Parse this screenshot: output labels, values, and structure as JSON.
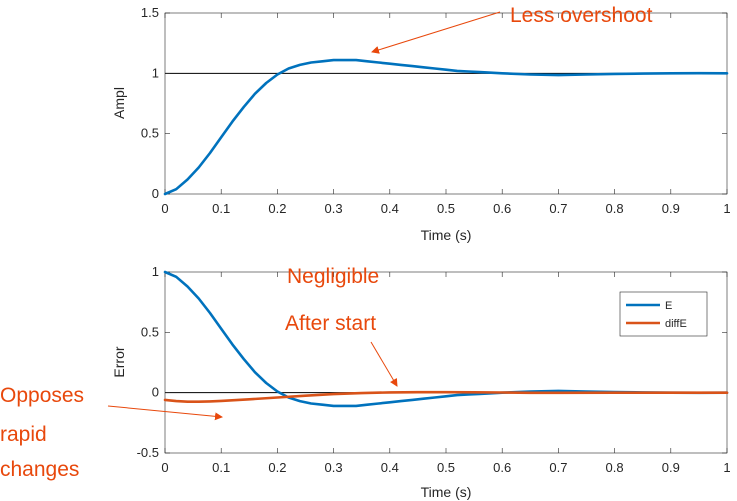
{
  "chart_data": [
    {
      "type": "line",
      "xlabel": "Time (s)",
      "ylabel": "Ampl",
      "xlim": [
        0,
        1
      ],
      "ylim": [
        0,
        1.5
      ],
      "xticks": [
        "0",
        "0.1",
        "0.2",
        "0.3",
        "0.4",
        "0.5",
        "0.6",
        "0.7",
        "0.8",
        "0.9",
        "1"
      ],
      "yticks": [
        "0",
        "0.5",
        "1",
        "1.5"
      ],
      "grid": false,
      "reference_line": 1,
      "series": [
        {
          "color": "#0072bd",
          "x": [
            0,
            0.02,
            0.04,
            0.06,
            0.08,
            0.1,
            0.12,
            0.14,
            0.16,
            0.18,
            0.2,
            0.22,
            0.24,
            0.26,
            0.28,
            0.3,
            0.32,
            0.34,
            0.36,
            0.38,
            0.4,
            0.42,
            0.44,
            0.46,
            0.48,
            0.5,
            0.52,
            0.54,
            0.56,
            0.58,
            0.6,
            0.65,
            0.7,
            0.75,
            0.8,
            0.85,
            0.9,
            0.95,
            1.0
          ],
          "y": [
            0,
            0.04,
            0.12,
            0.22,
            0.34,
            0.47,
            0.6,
            0.72,
            0.83,
            0.92,
            0.99,
            1.04,
            1.07,
            1.09,
            1.1,
            1.11,
            1.11,
            1.11,
            1.1,
            1.09,
            1.08,
            1.07,
            1.06,
            1.05,
            1.04,
            1.03,
            1.02,
            1.015,
            1.01,
            1.005,
            1.0,
            0.99,
            0.985,
            0.99,
            0.995,
            0.998,
            1.0,
            1.001,
            1.0
          ]
        }
      ],
      "annotations": [
        {
          "text": "Less overshoot",
          "target": [
            0.37,
            1.11
          ]
        }
      ]
    },
    {
      "type": "line",
      "xlabel": "Time (s)",
      "ylabel": "Error",
      "xlim": [
        0,
        1
      ],
      "ylim": [
        -0.5,
        1
      ],
      "xticks": [
        "0",
        "0.1",
        "0.2",
        "0.3",
        "0.4",
        "0.5",
        "0.6",
        "0.7",
        "0.8",
        "0.9",
        "1"
      ],
      "yticks": [
        "-0.5",
        "0",
        "0.5",
        "1"
      ],
      "grid": false,
      "reference_line": 0,
      "legend": "top-right",
      "series": [
        {
          "name": "E",
          "color": "#0072bd",
          "x": [
            0,
            0.02,
            0.04,
            0.06,
            0.08,
            0.1,
            0.12,
            0.14,
            0.16,
            0.18,
            0.2,
            0.22,
            0.24,
            0.26,
            0.28,
            0.3,
            0.32,
            0.34,
            0.36,
            0.38,
            0.4,
            0.42,
            0.44,
            0.46,
            0.48,
            0.5,
            0.52,
            0.54,
            0.56,
            0.58,
            0.6,
            0.65,
            0.7,
            0.75,
            0.8,
            0.85,
            0.9,
            0.95,
            1.0
          ],
          "y": [
            1.0,
            0.96,
            0.88,
            0.78,
            0.66,
            0.53,
            0.4,
            0.28,
            0.17,
            0.08,
            0.01,
            -0.04,
            -0.07,
            -0.09,
            -0.1,
            -0.11,
            -0.11,
            -0.11,
            -0.1,
            -0.09,
            -0.08,
            -0.07,
            -0.06,
            -0.05,
            -0.04,
            -0.03,
            -0.02,
            -0.015,
            -0.01,
            -0.005,
            0.0,
            0.01,
            0.015,
            0.01,
            0.005,
            0.002,
            0.0,
            -0.001,
            0.0
          ]
        },
        {
          "name": "diffE",
          "color": "#d95319",
          "x": [
            0,
            0.02,
            0.04,
            0.06,
            0.08,
            0.1,
            0.15,
            0.2,
            0.25,
            0.3,
            0.35,
            0.4,
            0.45,
            0.5,
            0.55,
            0.6,
            0.65,
            0.7,
            0.8,
            0.9,
            1.0
          ],
          "y": [
            -0.06,
            -0.07,
            -0.075,
            -0.075,
            -0.072,
            -0.068,
            -0.055,
            -0.04,
            -0.025,
            -0.012,
            -0.004,
            0.002,
            0.004,
            0.004,
            0.003,
            0.001,
            -0.001,
            -0.001,
            0.0,
            0.0,
            0.0
          ]
        }
      ],
      "annotations": [
        {
          "text": "Negligible",
          "target": [
            0.41,
            0.0
          ]
        },
        {
          "text": "After start",
          "target": [
            0.41,
            0.0
          ]
        },
        {
          "text": "Opposes",
          "target": [
            0.1,
            -0.09
          ]
        },
        {
          "text": "rapid",
          "target": [
            0.1,
            -0.09
          ]
        },
        {
          "text": "changes",
          "target": [
            0.1,
            -0.09
          ]
        }
      ]
    }
  ]
}
